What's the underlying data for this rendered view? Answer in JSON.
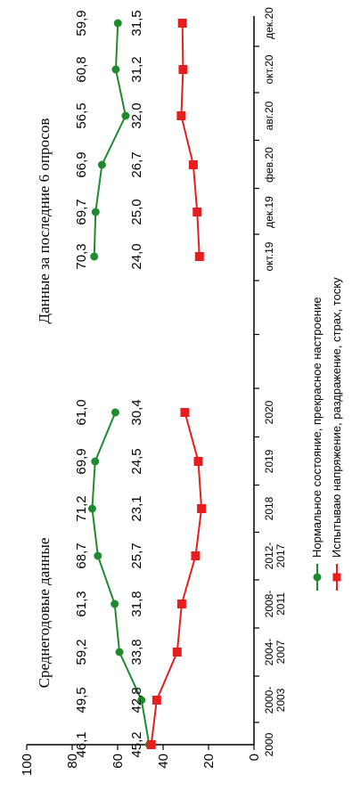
{
  "chart_data": {
    "type": "line",
    "ylim": [
      0,
      100
    ],
    "yticks": [
      "0",
      "20",
      "40",
      "60",
      "80",
      "100"
    ],
    "legend_position": "bottom",
    "series_colors": {
      "normal": "#1f8a2e",
      "stress": "#e81e1e"
    },
    "series_labels": {
      "normal": "Нормальное  состояние,  прекрасное  настроение",
      "stress": "Испытываю напряжение,  раздражение,  страх, тоску"
    },
    "panels": [
      {
        "title": "Среднегодовые данные",
        "x": [
          [
            "2000"
          ],
          [
            "2000-",
            "2003"
          ],
          [
            "2004-",
            "2007"
          ],
          [
            "2008-",
            "2011"
          ],
          [
            "2012-",
            "2017"
          ],
          [
            "2018"
          ],
          [
            "2019"
          ],
          [
            "2020"
          ]
        ],
        "normal": [
          46.1,
          49.5,
          59.2,
          61.3,
          68.7,
          71.2,
          69.9,
          61.0
        ],
        "stress": [
          45.2,
          42.8,
          33.8,
          31.8,
          25.7,
          23.1,
          24.5,
          30.4
        ],
        "normal_labels": [
          "46,1",
          "49,5",
          "59,2",
          "61,3",
          "68,7",
          "71,2",
          "69,9",
          "61,0"
        ],
        "stress_labels": [
          "45,2",
          "42,8",
          "33,8",
          "31,8",
          "25,7",
          "23,1",
          "24,5",
          "30,4"
        ]
      },
      {
        "title": "Данные за последние 6 опросов",
        "x": [
          [
            "окт.19"
          ],
          [
            "дек.19"
          ],
          [
            "фев.20"
          ],
          [
            "авг.20"
          ],
          [
            "окт.20"
          ],
          [
            "дек.20"
          ]
        ],
        "normal": [
          70.3,
          69.7,
          66.9,
          56.5,
          60.8,
          59.9
        ],
        "stress": [
          24.0,
          25.0,
          26.7,
          32.0,
          31.2,
          31.5
        ],
        "normal_labels": [
          "70,3",
          "69,7",
          "66,9",
          "56,5",
          "60,8",
          "59,9"
        ],
        "stress_labels": [
          "24,0",
          "25,0",
          "26,7",
          "32,0",
          "31,2",
          "31,5"
        ]
      }
    ]
  }
}
